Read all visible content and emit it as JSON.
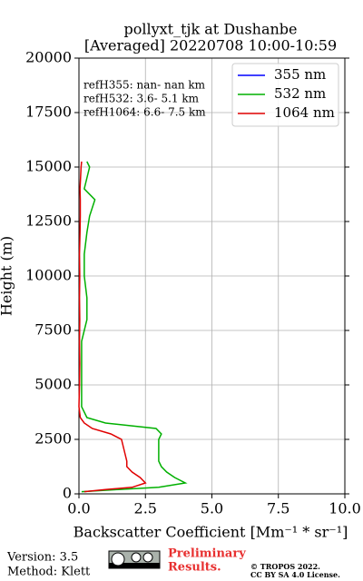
{
  "chart_data": {
    "type": "profile",
    "title": "pollyxt_tjk at Dushanbe",
    "subtitle": "[Averaged] 20220708 10:00-10:59",
    "x_label": "Backscatter Coefficient [Mm⁻¹ * sr⁻¹]",
    "y_label": "Height (m)",
    "annotations": [
      "refH355:  nan- nan km",
      "refH532:  3.6- 5.1 km",
      "refH1064:  6.6- 7.5 km"
    ],
    "y": [
      100,
      200,
      300,
      500,
      750,
      1000,
      1250,
      1500,
      2000,
      2500,
      2750,
      3000,
      3250,
      3500,
      4000,
      5000,
      6000,
      7000,
      8000,
      9000,
      10000,
      11000,
      12000,
      12750,
      13500,
      14000,
      14500,
      15000,
      15250
    ],
    "series": [
      {
        "name": "355 nm",
        "color": "#0000ff",
        "values": [
          null,
          null,
          null,
          null,
          null,
          null,
          null,
          null,
          null,
          null,
          null,
          null,
          null,
          null,
          null,
          null,
          null,
          null,
          null,
          null,
          null,
          null,
          null,
          null,
          null,
          null,
          null,
          null,
          null
        ]
      },
      {
        "name": "532 nm",
        "color": "#00b000",
        "values": [
          0.1,
          1.5,
          3.0,
          4.0,
          3.6,
          3.3,
          3.1,
          3.0,
          3.0,
          3.0,
          3.1,
          2.9,
          1.0,
          0.3,
          0.1,
          0.1,
          0.1,
          0.1,
          0.3,
          0.3,
          0.2,
          0.2,
          0.3,
          0.4,
          0.6,
          0.2,
          0.3,
          0.4,
          0.3
        ]
      },
      {
        "name": "1064 nm",
        "color": "#e00000",
        "values": [
          0.2,
          1.0,
          2.0,
          2.5,
          2.3,
          2.0,
          1.8,
          1.8,
          1.7,
          1.6,
          1.2,
          0.5,
          0.2,
          0.05,
          0.0,
          0.02,
          0.03,
          0.02,
          0.03,
          0.02,
          0.03,
          0.02,
          0.04,
          0.05,
          0.05,
          0.04,
          0.06,
          0.08,
          0.1
        ]
      }
    ],
    "xlim": [
      0,
      10
    ],
    "ylim": [
      0,
      20000
    ],
    "xticks": [
      {
        "value": 0,
        "label": "0.0"
      },
      2.5,
      {
        "value": 5,
        "label": "5.0"
      },
      7.5,
      {
        "value": 10,
        "label": "10.0"
      }
    ],
    "yticks": [
      0,
      2500,
      5000,
      7500,
      10000,
      12500,
      15000,
      17500,
      20000
    ],
    "grid": true,
    "legend": "upper-right"
  },
  "footer": {
    "version": "Version: 3.5",
    "method": "Method: Klett",
    "preliminary": [
      "Preliminary",
      "Results."
    ],
    "copyright": "© TROPOS 2022.",
    "license": "CC BY SA 4.0 License."
  }
}
